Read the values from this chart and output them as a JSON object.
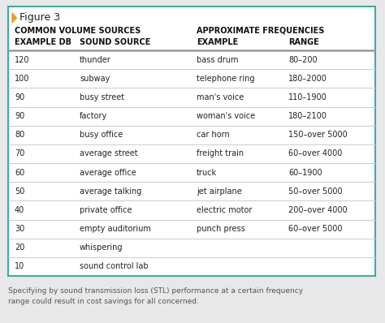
{
  "figure_label": "Figure 3",
  "col1_header1": "COMMON VOLUME SOURCES",
  "col2_header1": "APPROXIMATE FREQUENCIES",
  "col1_sub1": "EXAMPLE DB",
  "col1_sub2": "SOUND SOURCE",
  "col2_sub1": "EXAMPLE",
  "col2_sub2": "RANGE",
  "rows": [
    [
      "120",
      "thunder",
      "bass drum",
      "80–200"
    ],
    [
      "100",
      "subway",
      "telephone ring",
      "180–2000"
    ],
    [
      "90",
      "busy street",
      "man's voice",
      "110–1900"
    ],
    [
      "90",
      "factory",
      "woman's voice",
      "180–2100"
    ],
    [
      "80",
      "busy office",
      "car horn",
      "150–over 5000"
    ],
    [
      "70",
      "average street",
      "freight train",
      "60–over 4000"
    ],
    [
      "60",
      "average office",
      "truck",
      "60–1900"
    ],
    [
      "50",
      "average talking",
      "jet airplane",
      "50–over 5000"
    ],
    [
      "40",
      "private office",
      "electric motor",
      "200–over 4000"
    ],
    [
      "30",
      "empty auditorium",
      "punch press",
      "60–over 5000"
    ],
    [
      "20",
      "whispering",
      "",
      ""
    ],
    [
      "10",
      "sound control lab",
      "",
      ""
    ]
  ],
  "caption": "Specifying by sound transmission loss (STL) performance at a certain frequency\nrange could result in cost savings for all concerned.",
  "border_color": "#3aada0",
  "triangle_color": "#e8a020",
  "outer_bg": "#e8e8e8",
  "table_bg": "#ffffff",
  "thick_line_color": "#999999",
  "thin_line_color": "#cccccc",
  "text_color": "#222222",
  "caption_color": "#555555",
  "header_text_color": "#111111"
}
